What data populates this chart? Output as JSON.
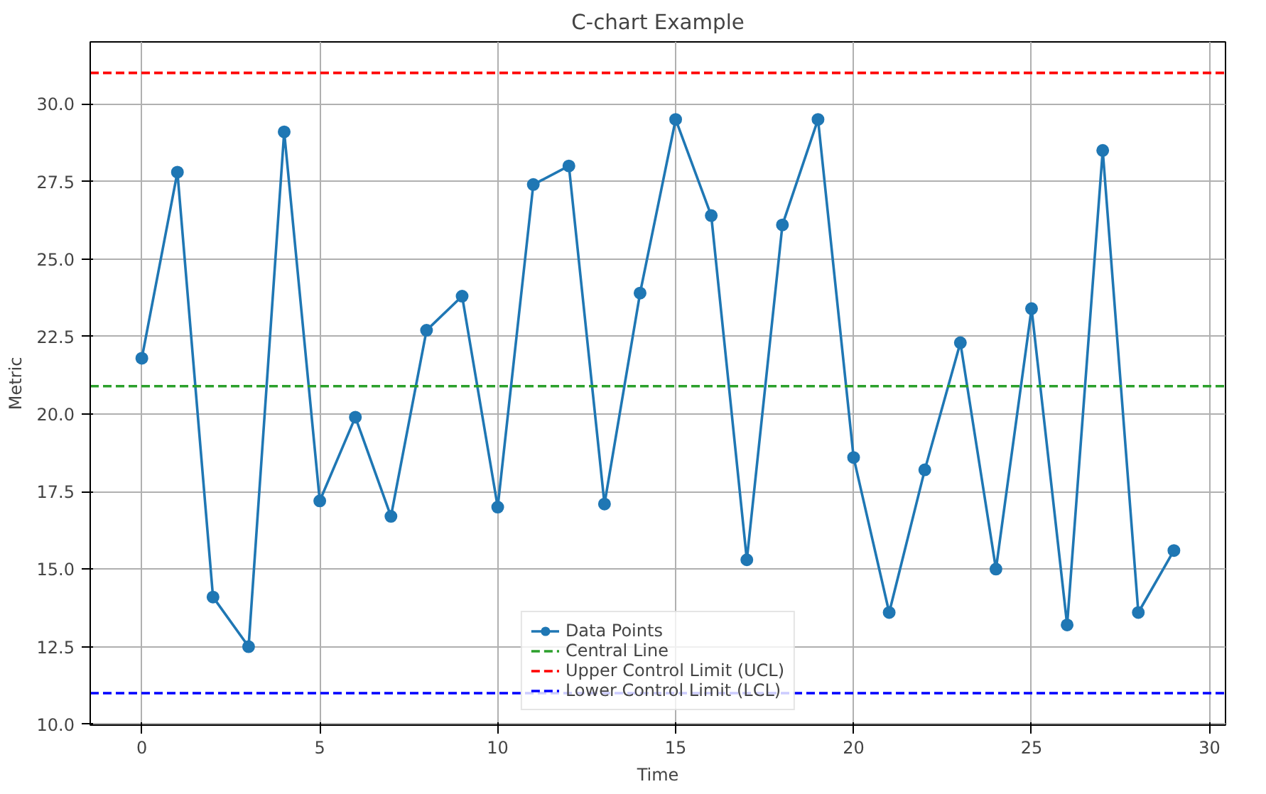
{
  "chart_data": {
    "type": "line",
    "title": "C-chart Example",
    "xlabel": "Time",
    "ylabel": "Metric",
    "x": [
      0,
      1,
      2,
      3,
      4,
      5,
      6,
      7,
      8,
      9,
      10,
      11,
      12,
      13,
      14,
      15,
      16,
      17,
      18,
      19,
      20,
      21,
      22,
      23,
      24,
      25,
      26,
      27,
      28,
      29
    ],
    "series": [
      {
        "name": "Data Points",
        "color": "#1f77b4",
        "values": [
          21.8,
          27.8,
          14.1,
          12.5,
          29.1,
          17.2,
          19.9,
          16.7,
          22.7,
          23.8,
          17.0,
          27.4,
          28.0,
          17.1,
          23.9,
          29.5,
          26.4,
          15.3,
          26.1,
          29.5,
          18.6,
          13.6,
          18.2,
          22.3,
          15.0,
          23.4,
          13.2,
          28.5,
          13.6,
          15.6
        ]
      }
    ],
    "ref_lines": [
      {
        "axis": "y",
        "value": 20.9,
        "label": "Central Line",
        "color": "#2ca02c",
        "line_style": "dashed"
      },
      {
        "axis": "y",
        "value": 31.0,
        "label": "Upper Control Limit (UCL)",
        "color": "#ff0000",
        "line_style": "dashed"
      },
      {
        "axis": "y",
        "value": 11.0,
        "label": "Lower Control Limit (LCL)",
        "color": "#0000ff",
        "line_style": "dashed"
      }
    ],
    "xlim": [
      -1.45,
      30.45
    ],
    "ylim": [
      9.97,
      32.0
    ],
    "xticks": [
      0,
      5,
      10,
      15,
      20,
      25,
      30
    ],
    "yticks": [
      {
        "value": 10,
        "label": "10.0"
      },
      {
        "value": 12.5,
        "label": "12.5"
      },
      {
        "value": 15,
        "label": "15.0"
      },
      {
        "value": 17.5,
        "label": "17.5"
      },
      {
        "value": 20,
        "label": "20.0"
      },
      {
        "value": 22.5,
        "label": "22.5"
      },
      {
        "value": 25,
        "label": "25.0"
      },
      {
        "value": 27.5,
        "label": "27.5"
      },
      {
        "value": 30,
        "label": "30.0"
      }
    ],
    "grid": true,
    "legend": "bottom",
    "marker": "circle",
    "line_style": "solid"
  }
}
